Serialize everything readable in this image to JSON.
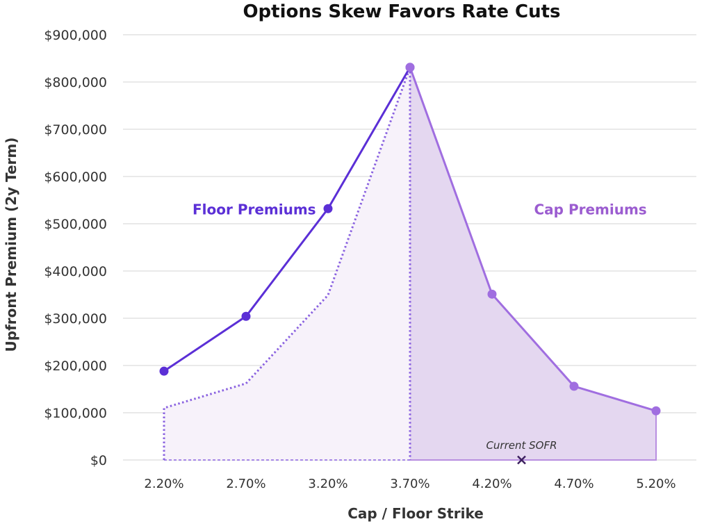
{
  "chart_data": {
    "type": "line",
    "title": "Options Skew Favors Rate Cuts",
    "xlabel": "Cap / Floor Strike",
    "ylabel": "Upfront Premium (2y Term)",
    "x_unit": "%",
    "x_ticks": [
      2.2,
      2.7,
      3.2,
      3.7,
      4.2,
      4.7,
      5.2
    ],
    "x_tick_labels": [
      "2.20%",
      "2.70%",
      "3.20%",
      "3.70%",
      "4.20%",
      "4.70%",
      "5.20%"
    ],
    "xlim": [
      2.2,
      5.2
    ],
    "ylim": [
      0,
      900000
    ],
    "y_ticks": [
      0,
      100000,
      200000,
      300000,
      400000,
      500000,
      600000,
      700000,
      800000,
      900000
    ],
    "y_tick_labels": [
      "$0",
      "$100,000",
      "$200,000",
      "$300,000",
      "$400,000",
      "$500,000",
      "$600,000",
      "$700,000",
      "$800,000",
      "$900,000"
    ],
    "grid": true,
    "series": [
      {
        "name": "Floor Premiums",
        "style": "solid-line-markers",
        "color": "#5b2fd6",
        "x": [
          2.2,
          2.7,
          3.2,
          3.7
        ],
        "values": [
          188000,
          304000,
          532000,
          831000
        ]
      },
      {
        "name": "Floor Premiums (dotted area)",
        "style": "dotted-area",
        "color": "#8a62e0",
        "fill": "#f7f2fa",
        "x": [
          2.2,
          2.7,
          3.2,
          3.7
        ],
        "values": [
          110000,
          162000,
          349000,
          831000
        ]
      },
      {
        "name": "Cap Premiums",
        "style": "solid-line-markers-area",
        "color": "#a06ee0",
        "fill": "#e4d7f0",
        "x": [
          3.7,
          4.2,
          4.7,
          5.2
        ],
        "values": [
          831000,
          351000,
          156000,
          104000
        ]
      }
    ],
    "annotations": [
      {
        "text": "Floor Premiums",
        "color": "#5b2fd6",
        "x": 2.75,
        "y": 530000
      },
      {
        "text": "Cap Premiums",
        "color": "#9b5cd0",
        "x": 4.8,
        "y": 530000
      },
      {
        "text": "Current SOFR",
        "marker": "x",
        "color": "#3d2060",
        "x": 4.38,
        "y": 0
      }
    ]
  }
}
